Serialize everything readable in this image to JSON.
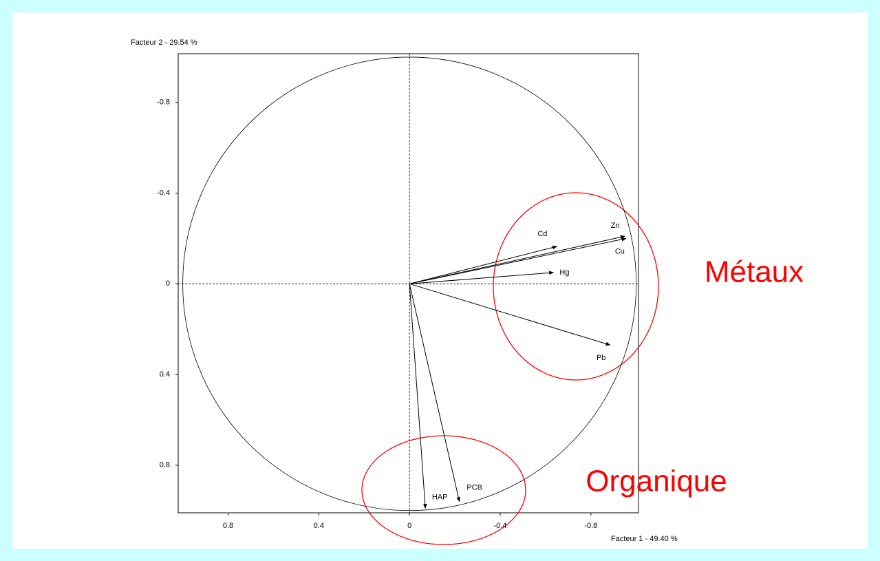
{
  "chart_data": {
    "type": "vector",
    "x_label": "Facteur 1  -  49.40 %",
    "y_label": "Facteur 2  -  29.54 %",
    "xlim": [
      1.02,
      -1.01
    ],
    "xticks": [
      0.8,
      0.4,
      0,
      -0.4,
      -0.8
    ],
    "ylim": [
      1.01,
      -1.015
    ],
    "yticks": [
      -0.8,
      -0.4,
      0,
      0.4,
      0.8
    ],
    "color": "#000000",
    "vectors": [
      {
        "name": "Zn",
        "x": -0.95,
        "y": -0.21
      },
      {
        "name": "Cu",
        "x": -0.955,
        "y": -0.2
      },
      {
        "name": "Cd",
        "x": -0.65,
        "y": -0.165
      },
      {
        "name": "Hg",
        "x": -0.635,
        "y": -0.05
      },
      {
        "name": "Pb",
        "x": -0.885,
        "y": 0.27
      },
      {
        "name": "PCB",
        "x": -0.22,
        "y": 0.96
      },
      {
        "name": "HAP",
        "x": -0.07,
        "y": 0.99
      }
    ],
    "annotations": [
      "Métaux",
      "Organique"
    ],
    "annotation_color": "#ff0000"
  }
}
